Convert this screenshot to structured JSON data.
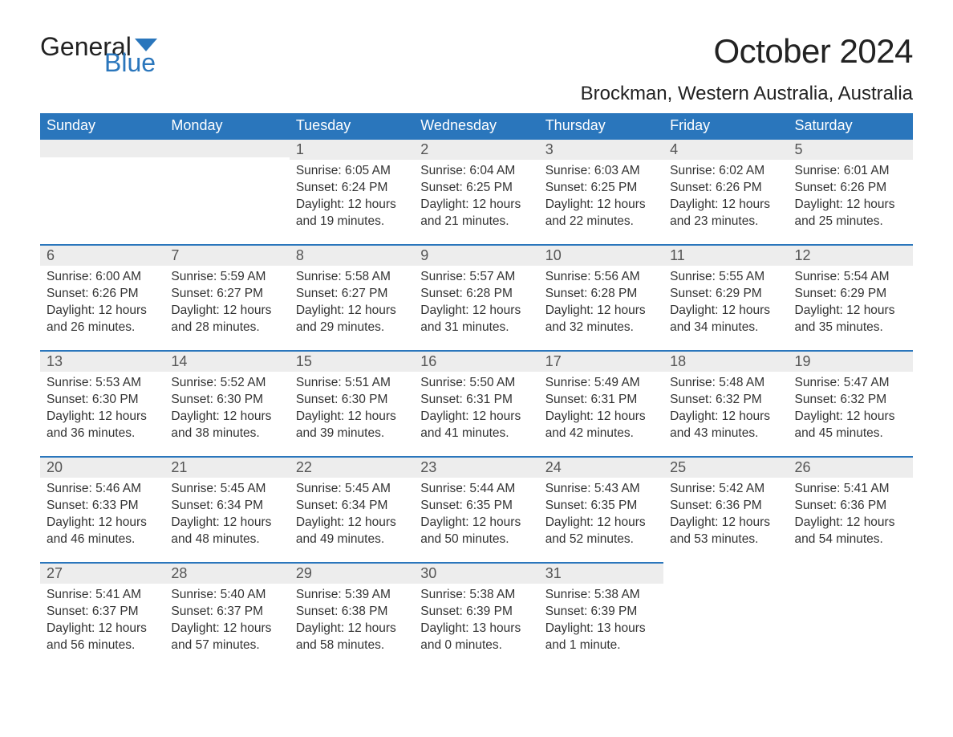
{
  "logo": {
    "text1": "General",
    "text2": "Blue",
    "color1": "#222222",
    "color2": "#2a76bc"
  },
  "title": "October 2024",
  "location": "Brockman, Western Australia, Australia",
  "colors": {
    "header_bg": "#2a76bc",
    "header_text": "#ffffff",
    "daybar_bg": "#ededed",
    "daybar_border": "#2a76bc",
    "body_text": "#333333",
    "page_bg": "#ffffff"
  },
  "weekdays": [
    "Sunday",
    "Monday",
    "Tuesday",
    "Wednesday",
    "Thursday",
    "Friday",
    "Saturday"
  ],
  "layout": {
    "columns": 7,
    "rows": 5,
    "first_weekday_index": 2,
    "days_in_month": 31
  },
  "days": {
    "1": {
      "sunrise": "Sunrise: 6:05 AM",
      "sunset": "Sunset: 6:24 PM",
      "daylight1": "Daylight: 12 hours",
      "daylight2": "and 19 minutes."
    },
    "2": {
      "sunrise": "Sunrise: 6:04 AM",
      "sunset": "Sunset: 6:25 PM",
      "daylight1": "Daylight: 12 hours",
      "daylight2": "and 21 minutes."
    },
    "3": {
      "sunrise": "Sunrise: 6:03 AM",
      "sunset": "Sunset: 6:25 PM",
      "daylight1": "Daylight: 12 hours",
      "daylight2": "and 22 minutes."
    },
    "4": {
      "sunrise": "Sunrise: 6:02 AM",
      "sunset": "Sunset: 6:26 PM",
      "daylight1": "Daylight: 12 hours",
      "daylight2": "and 23 minutes."
    },
    "5": {
      "sunrise": "Sunrise: 6:01 AM",
      "sunset": "Sunset: 6:26 PM",
      "daylight1": "Daylight: 12 hours",
      "daylight2": "and 25 minutes."
    },
    "6": {
      "sunrise": "Sunrise: 6:00 AM",
      "sunset": "Sunset: 6:26 PM",
      "daylight1": "Daylight: 12 hours",
      "daylight2": "and 26 minutes."
    },
    "7": {
      "sunrise": "Sunrise: 5:59 AM",
      "sunset": "Sunset: 6:27 PM",
      "daylight1": "Daylight: 12 hours",
      "daylight2": "and 28 minutes."
    },
    "8": {
      "sunrise": "Sunrise: 5:58 AM",
      "sunset": "Sunset: 6:27 PM",
      "daylight1": "Daylight: 12 hours",
      "daylight2": "and 29 minutes."
    },
    "9": {
      "sunrise": "Sunrise: 5:57 AM",
      "sunset": "Sunset: 6:28 PM",
      "daylight1": "Daylight: 12 hours",
      "daylight2": "and 31 minutes."
    },
    "10": {
      "sunrise": "Sunrise: 5:56 AM",
      "sunset": "Sunset: 6:28 PM",
      "daylight1": "Daylight: 12 hours",
      "daylight2": "and 32 minutes."
    },
    "11": {
      "sunrise": "Sunrise: 5:55 AM",
      "sunset": "Sunset: 6:29 PM",
      "daylight1": "Daylight: 12 hours",
      "daylight2": "and 34 minutes."
    },
    "12": {
      "sunrise": "Sunrise: 5:54 AM",
      "sunset": "Sunset: 6:29 PM",
      "daylight1": "Daylight: 12 hours",
      "daylight2": "and 35 minutes."
    },
    "13": {
      "sunrise": "Sunrise: 5:53 AM",
      "sunset": "Sunset: 6:30 PM",
      "daylight1": "Daylight: 12 hours",
      "daylight2": "and 36 minutes."
    },
    "14": {
      "sunrise": "Sunrise: 5:52 AM",
      "sunset": "Sunset: 6:30 PM",
      "daylight1": "Daylight: 12 hours",
      "daylight2": "and 38 minutes."
    },
    "15": {
      "sunrise": "Sunrise: 5:51 AM",
      "sunset": "Sunset: 6:30 PM",
      "daylight1": "Daylight: 12 hours",
      "daylight2": "and 39 minutes."
    },
    "16": {
      "sunrise": "Sunrise: 5:50 AM",
      "sunset": "Sunset: 6:31 PM",
      "daylight1": "Daylight: 12 hours",
      "daylight2": "and 41 minutes."
    },
    "17": {
      "sunrise": "Sunrise: 5:49 AM",
      "sunset": "Sunset: 6:31 PM",
      "daylight1": "Daylight: 12 hours",
      "daylight2": "and 42 minutes."
    },
    "18": {
      "sunrise": "Sunrise: 5:48 AM",
      "sunset": "Sunset: 6:32 PM",
      "daylight1": "Daylight: 12 hours",
      "daylight2": "and 43 minutes."
    },
    "19": {
      "sunrise": "Sunrise: 5:47 AM",
      "sunset": "Sunset: 6:32 PM",
      "daylight1": "Daylight: 12 hours",
      "daylight2": "and 45 minutes."
    },
    "20": {
      "sunrise": "Sunrise: 5:46 AM",
      "sunset": "Sunset: 6:33 PM",
      "daylight1": "Daylight: 12 hours",
      "daylight2": "and 46 minutes."
    },
    "21": {
      "sunrise": "Sunrise: 5:45 AM",
      "sunset": "Sunset: 6:34 PM",
      "daylight1": "Daylight: 12 hours",
      "daylight2": "and 48 minutes."
    },
    "22": {
      "sunrise": "Sunrise: 5:45 AM",
      "sunset": "Sunset: 6:34 PM",
      "daylight1": "Daylight: 12 hours",
      "daylight2": "and 49 minutes."
    },
    "23": {
      "sunrise": "Sunrise: 5:44 AM",
      "sunset": "Sunset: 6:35 PM",
      "daylight1": "Daylight: 12 hours",
      "daylight2": "and 50 minutes."
    },
    "24": {
      "sunrise": "Sunrise: 5:43 AM",
      "sunset": "Sunset: 6:35 PM",
      "daylight1": "Daylight: 12 hours",
      "daylight2": "and 52 minutes."
    },
    "25": {
      "sunrise": "Sunrise: 5:42 AM",
      "sunset": "Sunset: 6:36 PM",
      "daylight1": "Daylight: 12 hours",
      "daylight2": "and 53 minutes."
    },
    "26": {
      "sunrise": "Sunrise: 5:41 AM",
      "sunset": "Sunset: 6:36 PM",
      "daylight1": "Daylight: 12 hours",
      "daylight2": "and 54 minutes."
    },
    "27": {
      "sunrise": "Sunrise: 5:41 AM",
      "sunset": "Sunset: 6:37 PM",
      "daylight1": "Daylight: 12 hours",
      "daylight2": "and 56 minutes."
    },
    "28": {
      "sunrise": "Sunrise: 5:40 AM",
      "sunset": "Sunset: 6:37 PM",
      "daylight1": "Daylight: 12 hours",
      "daylight2": "and 57 minutes."
    },
    "29": {
      "sunrise": "Sunrise: 5:39 AM",
      "sunset": "Sunset: 6:38 PM",
      "daylight1": "Daylight: 12 hours",
      "daylight2": "and 58 minutes."
    },
    "30": {
      "sunrise": "Sunrise: 5:38 AM",
      "sunset": "Sunset: 6:39 PM",
      "daylight1": "Daylight: 13 hours",
      "daylight2": "and 0 minutes."
    },
    "31": {
      "sunrise": "Sunrise: 5:38 AM",
      "sunset": "Sunset: 6:39 PM",
      "daylight1": "Daylight: 13 hours",
      "daylight2": "and 1 minute."
    }
  }
}
